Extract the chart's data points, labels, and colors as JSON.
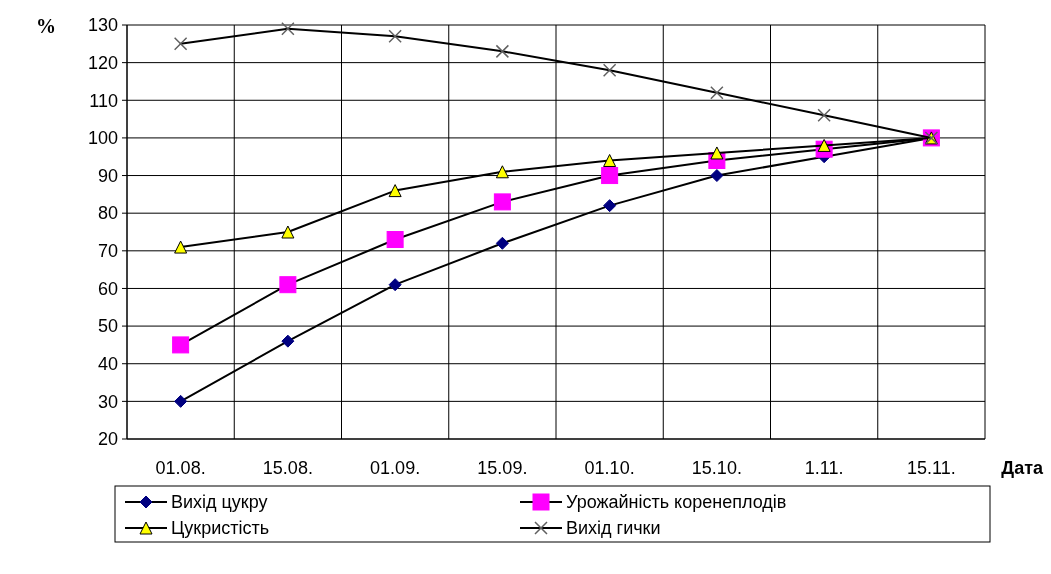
{
  "chart_data": {
    "type": "line",
    "ylabel": "%",
    "xlabel": "Дата",
    "categories": [
      "01.08.",
      "15.08.",
      "01.09.",
      "15.09.",
      "01.10.",
      "15.10.",
      "1.11.",
      "15.11."
    ],
    "ylim": [
      20,
      130
    ],
    "yticks": [
      20,
      30,
      40,
      50,
      60,
      70,
      80,
      90,
      100,
      110,
      120,
      130
    ],
    "grid": true,
    "legend": "bottom",
    "series": [
      {
        "name": "Вихід цукру",
        "color": "#000080",
        "marker": "diamond",
        "values": [
          30,
          46,
          61,
          72,
          82,
          90,
          95,
          100
        ]
      },
      {
        "name": "Урожайність коренеплодів",
        "color": "#ff00ff",
        "marker": "square",
        "values": [
          45,
          61,
          73,
          83,
          90,
          94,
          97,
          100
        ]
      },
      {
        "name": "Цукристість",
        "color": "#ffff00",
        "marker": "triangle",
        "values": [
          71,
          75,
          86,
          91,
          94,
          96,
          98,
          100
        ]
      },
      {
        "name": "Вихід гички",
        "color": "#606060",
        "marker": "cross",
        "values": [
          125,
          129,
          127,
          123,
          118,
          112,
          106,
          100
        ]
      }
    ]
  }
}
